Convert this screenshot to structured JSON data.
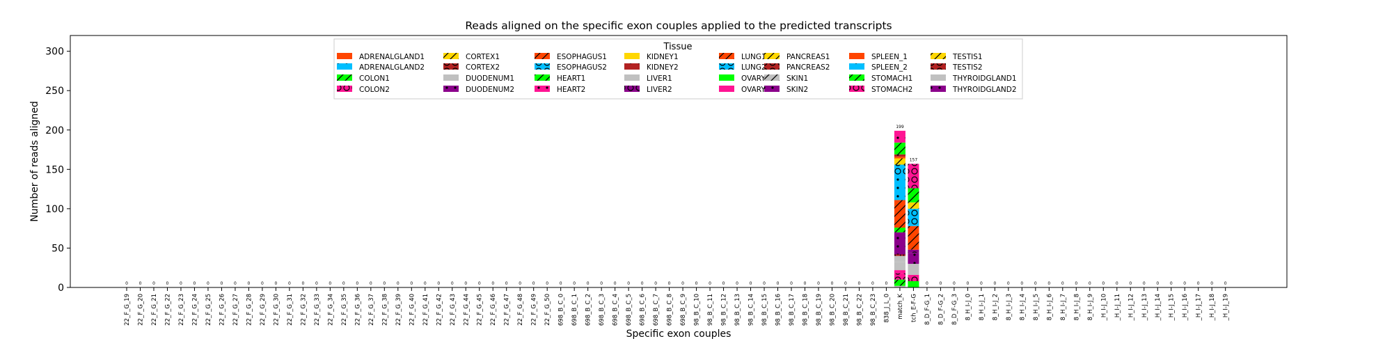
{
  "chart_data": {
    "type": "bar",
    "stacked": true,
    "title": "Reads aligned on the specific exon couples applied to the predicted transcripts",
    "xlabel": "Specific exon couples",
    "ylabel": "Number of reads aligned",
    "ylim": [
      0,
      320
    ],
    "yticks": [
      0,
      50,
      100,
      150,
      200,
      250,
      300
    ],
    "grid": false,
    "legend_title": "Tissue",
    "legend_placement": "upper-center",
    "categories": [
      "22_F_G_19",
      "22_F_G_20",
      "22_F_G_21",
      "22_F_G_22",
      "22_F_G_23",
      "22_F_G_24",
      "22_F_G_25",
      "22_F_G_26",
      "22_F_G_27",
      "22_F_G_28",
      "22_F_G_29",
      "22_F_G_30",
      "22_F_G_31",
      "22_F_G_32",
      "22_F_G_33",
      "22_F_G_34",
      "22_F_G_35",
      "22_F_G_36",
      "22_F_G_37",
      "22_F_G_38",
      "22_F_G_39",
      "22_F_G_40",
      "22_F_G_41",
      "22_F_G_42",
      "22_F_G_43",
      "22_F_G_44",
      "22_F_G_45",
      "22_F_G_46",
      "22_F_G_47",
      "22_F_G_48",
      "22_F_G_49",
      "22_F_G_50",
      "698_B_C_0",
      "698_B_C_1",
      "698_B_C_2",
      "698_B_C_3",
      "698_B_C_4",
      "698_B_C_5",
      "698_B_C_6",
      "698_B_C_7",
      "698_B_C_8",
      "698_B_C_9",
      "98_B_C_10",
      "98_B_C_11",
      "98_B_C_12",
      "98_B_C_13",
      "98_B_C_14",
      "98_B_C_15",
      "98_B_C_16",
      "98_B_C_17",
      "98_B_C_18",
      "98_B_C_19",
      "98_B_C_20",
      "98_B_C_21",
      "98_B_C_22",
      "98_B_C_23",
      "838_J_L_0",
      "match_K",
      "tch_E-F-G",
      "8_D_F-G_1",
      "8_D_F-G_2",
      "8_D_F-G_3",
      "8_H_I-J_0",
      "8_H_I-J_1",
      "8_H_I-J_2",
      "8_H_I-J_3",
      "8_H_I-J_4",
      "8_H_I-J_5",
      "8_H_I-J_6",
      "8_H_I-J_7",
      "8_H_I-J_8",
      "8_H_I-J_9",
      "_H_I-J_10",
      "_H_I-J_11",
      "_H_I-J_12",
      "_H_I-J_13",
      "_H_I-J_14",
      "_H_I-J_15",
      "_H_I-J_16",
      "_H_I-J_17",
      "_H_I-J_18",
      "_H_I-J_19"
    ],
    "totals": [
      0,
      0,
      0,
      0,
      0,
      0,
      0,
      0,
      0,
      0,
      0,
      0,
      0,
      0,
      0,
      0,
      0,
      0,
      0,
      0,
      0,
      0,
      0,
      0,
      0,
      0,
      0,
      0,
      0,
      0,
      0,
      0,
      0,
      0,
      0,
      0,
      0,
      0,
      0,
      0,
      0,
      0,
      0,
      0,
      0,
      0,
      0,
      0,
      0,
      0,
      0,
      0,
      0,
      0,
      0,
      0,
      0,
      199,
      157,
      0,
      0,
      0,
      0,
      0,
      0,
      0,
      0,
      0,
      0,
      0,
      0,
      0,
      0,
      0,
      0,
      0,
      0,
      0,
      0,
      0,
      0,
      0
    ],
    "total_labels": [
      "0",
      "0",
      "0",
      "0",
      "0",
      "0",
      "0",
      "0",
      "0",
      "0",
      "0",
      "0",
      "0",
      "0",
      "0",
      "0",
      "0",
      "0",
      "0",
      "0",
      "0",
      "0",
      "0",
      "0",
      "0",
      "0",
      "0",
      "0",
      "0",
      "0",
      "0",
      "0",
      "0",
      "0",
      "0",
      "0",
      "0",
      "0",
      "0",
      "0",
      "0",
      "0",
      "0",
      "0",
      "0",
      "0",
      "0",
      "0",
      "0",
      "0",
      "0",
      "0",
      "0",
      "0",
      "0",
      "0",
      "0",
      "199",
      "157",
      "0",
      "0",
      "0",
      "0",
      "0",
      "0",
      "0",
      "0",
      "0",
      "0",
      "0",
      "0",
      "0",
      "0",
      "0",
      "0",
      "0",
      "0",
      "0",
      "0",
      "0",
      "0",
      "0"
    ],
    "series": [
      {
        "name": "ADRENALGLAND1",
        "color": "#ff4500",
        "hatch": "none"
      },
      {
        "name": "ADRENALGLAND2",
        "color": "#00bfff",
        "hatch": "dots"
      },
      {
        "name": "COLON1",
        "color": "#00ff00",
        "hatch": "slash"
      },
      {
        "name": "COLON2",
        "color": "#ff1493",
        "hatch": "circles"
      },
      {
        "name": "CORTEX1",
        "color": "#ffd700",
        "hatch": "slash"
      },
      {
        "name": "CORTEX2",
        "color": "#b22222",
        "hatch": "circles"
      },
      {
        "name": "DUODENUM1",
        "color": "#c0c0c0",
        "hatch": "none"
      },
      {
        "name": "DUODENUM2",
        "color": "#8b008b",
        "hatch": "dots"
      },
      {
        "name": "ESOPHAGUS1",
        "color": "#ff4500",
        "hatch": "slash"
      },
      {
        "name": "ESOPHAGUS2",
        "color": "#00bfff",
        "hatch": "circles"
      },
      {
        "name": "HEART1",
        "color": "#00ff00",
        "hatch": "slash"
      },
      {
        "name": "HEART2",
        "color": "#ff1493",
        "hatch": "dots"
      },
      {
        "name": "KIDNEY1",
        "color": "#ffd700",
        "hatch": "none"
      },
      {
        "name": "KIDNEY2",
        "color": "#b22222",
        "hatch": "dots"
      },
      {
        "name": "LIVER1",
        "color": "#c0c0c0",
        "hatch": "none"
      },
      {
        "name": "LIVER2",
        "color": "#8b008b",
        "hatch": "circles"
      },
      {
        "name": "LUNG1",
        "color": "#ff4500",
        "hatch": "slash"
      },
      {
        "name": "LUNG2",
        "color": "#00bfff",
        "hatch": "circles"
      },
      {
        "name": "OVARY1",
        "color": "#00ff00",
        "hatch": "none"
      },
      {
        "name": "OVARY2",
        "color": "#ff1493",
        "hatch": "none"
      },
      {
        "name": "PANCREAS1",
        "color": "#ffd700",
        "hatch": "slash"
      },
      {
        "name": "PANCREAS2",
        "color": "#b22222",
        "hatch": "circles"
      },
      {
        "name": "SKIN1",
        "color": "#c0c0c0",
        "hatch": "slash"
      },
      {
        "name": "SKIN2",
        "color": "#8b008b",
        "hatch": "dots"
      },
      {
        "name": "SPLEEN_1",
        "color": "#ff4500",
        "hatch": "none"
      },
      {
        "name": "SPLEEN_2",
        "color": "#00bfff",
        "hatch": "dots"
      },
      {
        "name": "STOMACH1",
        "color": "#00ff00",
        "hatch": "slash"
      },
      {
        "name": "STOMACH2",
        "color": "#ff1493",
        "hatch": "circles"
      },
      {
        "name": "TESTIS1",
        "color": "#ffd700",
        "hatch": "slash"
      },
      {
        "name": "TESTIS2",
        "color": "#b22222",
        "hatch": "circles"
      },
      {
        "name": "THYROIDGLAND1",
        "color": "#c0c0c0",
        "hatch": "none"
      },
      {
        "name": "THYROIDGLAND2",
        "color": "#8b008b",
        "hatch": "dots"
      }
    ],
    "stacks": {
      "match_K": [
        {
          "series": "THYROIDGLAND1",
          "value": 2
        },
        {
          "series": "STOMACH1",
          "value": 8
        },
        {
          "series": "COLON2",
          "value": 8
        },
        {
          "series": "OVARY2",
          "value": 4
        },
        {
          "series": "DUODENUM1",
          "value": 10
        },
        {
          "series": "LIVER1",
          "value": 8
        },
        {
          "series": "CORTEX2",
          "value": 2
        },
        {
          "series": "DUODENUM2",
          "value": 28
        },
        {
          "series": "COLON1",
          "value": 6
        },
        {
          "series": "ESOPHAGUS1",
          "value": 35
        },
        {
          "series": "ADRENALGLAND2",
          "value": 30
        },
        {
          "series": "ESOPHAGUS2",
          "value": 15
        },
        {
          "series": "CORTEX1",
          "value": 8
        },
        {
          "series": "SPLEEN_1",
          "value": 2
        },
        {
          "series": "KIDNEY2",
          "value": 3
        },
        {
          "series": "HEART1",
          "value": 15
        },
        {
          "series": "HEART2",
          "value": 15
        }
      ],
      "tch_E-F-G": [
        {
          "series": "OVARY1",
          "value": 8
        },
        {
          "series": "STOMACH2",
          "value": 8
        },
        {
          "series": "LIVER1",
          "value": 14
        },
        {
          "series": "THYROIDGLAND2",
          "value": 14
        },
        {
          "series": "LIVER2",
          "value": 4
        },
        {
          "series": "ESOPHAGUS1",
          "value": 30
        },
        {
          "series": "LUNG2",
          "value": 22
        },
        {
          "series": "PANCREAS1",
          "value": 8
        },
        {
          "series": "HEART1",
          "value": 18
        },
        {
          "series": "COLON2",
          "value": 31
        }
      ]
    }
  }
}
